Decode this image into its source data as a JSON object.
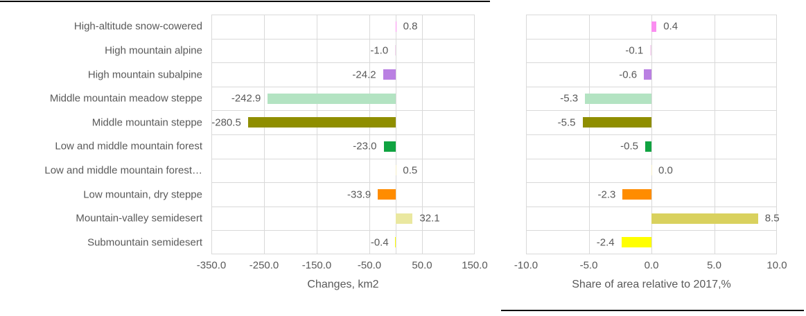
{
  "figure": {
    "background_color": "#ffffff",
    "text_color": "#595959",
    "grid_color": "#d9d9d9",
    "top_rule_color": "#000000",
    "bottom_rule_color": "#000000"
  },
  "chart_data": [
    {
      "type": "bar",
      "orientation": "horizontal",
      "title": "",
      "xlabel": "Changes, km2",
      "ylabel": "",
      "categories": [
        "High-altitude snow-cowered",
        "High mountain alpine",
        "High mountain subalpine",
        "Middle mountain meadow steppe",
        "Middle mountain steppe",
        "Low and middle mountain forest",
        "Low and middle mountain forest…",
        "Low mountain, dry steppe",
        "Mountain-valley semidesert",
        "Submountain semidesert"
      ],
      "values": [
        0.8,
        -1.0,
        -24.2,
        -242.9,
        -280.5,
        -23.0,
        0.5,
        -33.9,
        32.1,
        -0.4
      ],
      "value_labels": [
        "0.8",
        "-1.0",
        "-24.2",
        "-242.9",
        "-280.5",
        "-23.0",
        "0.5",
        "-33.9",
        "32.1",
        "-0.4"
      ],
      "colors": [
        "#fa8ef0",
        "#f6d9f2",
        "#ba80e2",
        "#b3e3c2",
        "#8f8e00",
        "#10a341",
        "#f5edc6",
        "#ff8c00",
        "#eae8a0",
        "#ffff00"
      ],
      "xlim": [
        -350,
        150
      ],
      "ticks": [
        -350,
        -250,
        -150,
        -50,
        50,
        150
      ],
      "tick_labels": [
        "-350.0",
        "-250.0",
        "-150.0",
        "-50.0",
        "50.0",
        "150.0"
      ],
      "grid": true,
      "legend": "none"
    },
    {
      "type": "bar",
      "orientation": "horizontal",
      "title": "",
      "xlabel": "Share of area relative to 2017,%",
      "ylabel": "",
      "categories": [
        "High-altitude snow-cowered",
        "High mountain alpine",
        "High mountain subalpine",
        "Middle mountain meadow steppe",
        "Middle mountain steppe",
        "Low and middle mountain forest",
        "Low and middle mountain forest…",
        "Low mountain, dry steppe",
        "Mountain-valley semidesert",
        "Submountain semidesert"
      ],
      "values": [
        0.4,
        -0.1,
        -0.6,
        -5.3,
        -5.5,
        -0.5,
        0.0,
        -2.3,
        8.5,
        -2.4
      ],
      "value_labels": [
        "0.4",
        "-0.1",
        "-0.6",
        "-5.3",
        "-5.5",
        "-0.5",
        "0.0",
        "-2.3",
        "8.5",
        "-2.4"
      ],
      "colors": [
        "#fa8ef0",
        "#f6d9f2",
        "#ba80e2",
        "#b3e3c2",
        "#8f8e00",
        "#10a341",
        "#f5edc6",
        "#ff8c00",
        "#d9d15e",
        "#ffff00"
      ],
      "xlim": [
        -10,
        10
      ],
      "ticks": [
        -10,
        -5,
        0,
        5,
        10
      ],
      "tick_labels": [
        "-10.0",
        "-5.0",
        "0.0",
        "5.0",
        "10.0"
      ],
      "grid": true,
      "legend": "none"
    }
  ]
}
